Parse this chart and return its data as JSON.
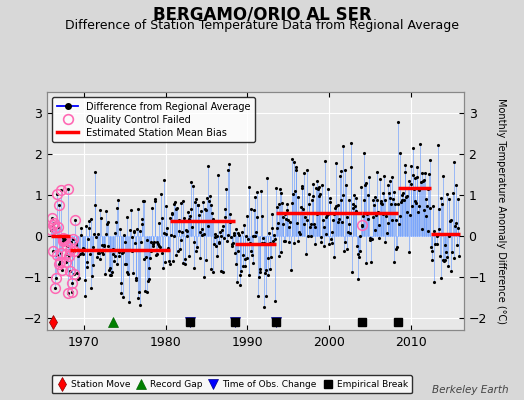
{
  "title": "BERGAMO/ORIO AL SER",
  "subtitle": "Difference of Station Temperature Data from Regional Average",
  "ylabel": "Monthly Temperature Anomaly Difference (°C)",
  "xlim": [
    1965.5,
    2016.5
  ],
  "ylim": [
    -2.3,
    3.5
  ],
  "yticks": [
    -2,
    -1,
    0,
    1,
    2,
    3
  ],
  "xticks": [
    1970,
    1980,
    1990,
    2000,
    2010
  ],
  "background_color": "#d8d8d8",
  "plot_bg_color": "#e8e8e8",
  "grid_color": "#ffffff",
  "title_fontsize": 12,
  "subtitle_fontsize": 9,
  "tick_fontsize": 9,
  "watermark": "Berkeley Earth",
  "seed": 77,
  "segments": [
    {
      "start": 1966.0,
      "end": 1968.3,
      "bias": 0.0
    },
    {
      "start": 1968.3,
      "end": 1980.5,
      "bias": -0.35
    },
    {
      "start": 1980.5,
      "end": 1988.5,
      "bias": 0.35
    },
    {
      "start": 1988.5,
      "end": 1993.5,
      "bias": -0.2
    },
    {
      "start": 1993.5,
      "end": 2004.0,
      "bias": 0.55
    },
    {
      "start": 2004.0,
      "end": 2008.5,
      "bias": 0.55
    },
    {
      "start": 2008.5,
      "end": 2012.5,
      "bias": 1.15
    },
    {
      "start": 2012.5,
      "end": 2016.0,
      "bias": 0.05
    }
  ],
  "qc_failed_ranges": [
    [
      1966.0,
      1969.0
    ]
  ],
  "qc_failed_one": [
    2004.0
  ],
  "station_moves": [
    1966.2
  ],
  "record_gaps": [
    1973.5
  ],
  "obs_changes": [
    1983.0,
    1988.5,
    1993.5
  ],
  "empirical_breaks": [
    1983.0,
    1988.5,
    1993.5,
    2004.0,
    2008.5
  ],
  "event_y": -2.1,
  "noise_std": 0.65
}
